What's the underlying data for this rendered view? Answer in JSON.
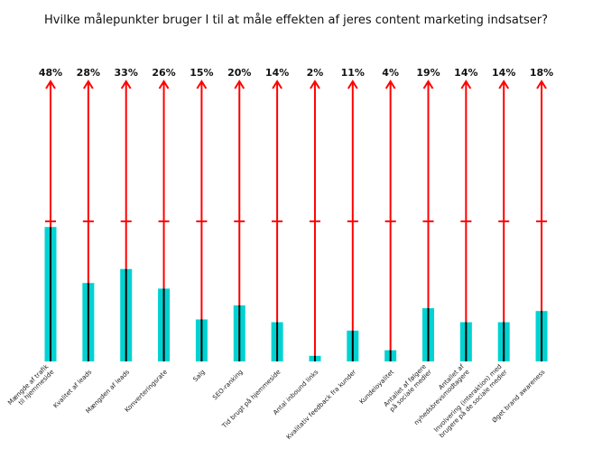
{
  "chart_data": {
    "type": "bar",
    "title": "Hvilke målepunkter bruger I til at måle effekten af jeres content marketing indsatser?",
    "xlabel": "",
    "ylabel": "",
    "ylim": [
      0,
      100
    ],
    "grid": false,
    "legend": "none",
    "categories": [
      [
        "Mængde af trafik",
        "til hjemmeside"
      ],
      [
        "Kvalitet af leads"
      ],
      [
        "Mængden af leads"
      ],
      [
        "Konverteringsrate"
      ],
      [
        "Salg"
      ],
      [
        "SEO-ranking"
      ],
      [
        "Tid brugt på hjemmeside"
      ],
      [
        "Antal inbound links"
      ],
      [
        "Kvalitativ feedback fra kunder"
      ],
      [
        "Kundeloyalitet"
      ],
      [
        "Antallet af følgere",
        "på sociale medier"
      ],
      [
        "Antallet af",
        "nyhedsbrevsmodtagere"
      ],
      [
        "Involvering (interaktion) med",
        "brugere på de sociale medier"
      ],
      [
        "Øget brand awareness"
      ]
    ],
    "values": [
      48,
      28,
      33,
      26,
      15,
      20,
      14,
      2,
      11,
      4,
      19,
      14,
      14,
      18
    ],
    "value_labels": [
      "48%",
      "28%",
      "33%",
      "26%",
      "15%",
      "20%",
      "14%",
      "2%",
      "11%",
      "4%",
      "19%",
      "14%",
      "14%",
      "18%"
    ],
    "colors": {
      "bar": "#00d2d2",
      "bar_center": "#000000",
      "arrow": "#ff0000"
    }
  }
}
